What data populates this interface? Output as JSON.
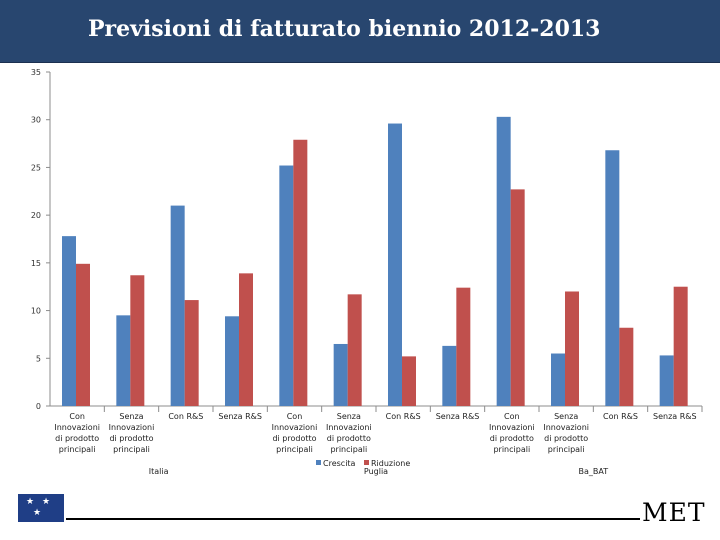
{
  "header": {
    "title": "Previsioni di fatturato biennio 2012-2013"
  },
  "footer": {
    "brand": "MET"
  },
  "chart_data": {
    "type": "bar",
    "title": "Previsioni di fatturato biennio 2012-2013",
    "ylim": [
      0,
      35
    ],
    "yticks": [
      0,
      5,
      10,
      15,
      20,
      25,
      30,
      35
    ],
    "groups": [
      {
        "name": "Italia",
        "categories": [
          "Con Innovazioni di prodotto principali",
          "Senza Innovazioni di prodotto principali",
          "Con R&S",
          "Senza R&S"
        ]
      },
      {
        "name": "Puglia",
        "categories": [
          "Con Innovazioni di prodotto principali",
          "Senza Innovazioni di prodotto principali",
          "Con R&S",
          "Senza R&S"
        ]
      },
      {
        "name": "Ba_BAT",
        "categories": [
          "Con Innovazioni di prodotto principali",
          "Senza Innovazioni di prodotto principali",
          "Con R&S",
          "Senza R&S"
        ]
      }
    ],
    "category_label_lines": [
      [
        "Con",
        "Innovazioni",
        "di prodotto",
        "principali"
      ],
      [
        "Senza",
        "Innovazioni",
        "di prodotto",
        "principali"
      ],
      [
        "Con R&S"
      ],
      [
        "Senza R&S"
      ]
    ],
    "series": [
      {
        "name": "Crescita",
        "color": "#4f81bd",
        "values": [
          17.8,
          9.5,
          21.0,
          9.4,
          25.2,
          6.5,
          29.6,
          6.3,
          30.3,
          5.5,
          26.8,
          5.3
        ]
      },
      {
        "name": "Riduzione",
        "color": "#c0504d",
        "values": [
          14.9,
          13.7,
          11.1,
          13.9,
          27.9,
          11.7,
          5.2,
          12.4,
          22.7,
          12.0,
          8.2,
          12.5
        ]
      }
    ],
    "legend": "bottom-center",
    "grid": false
  }
}
